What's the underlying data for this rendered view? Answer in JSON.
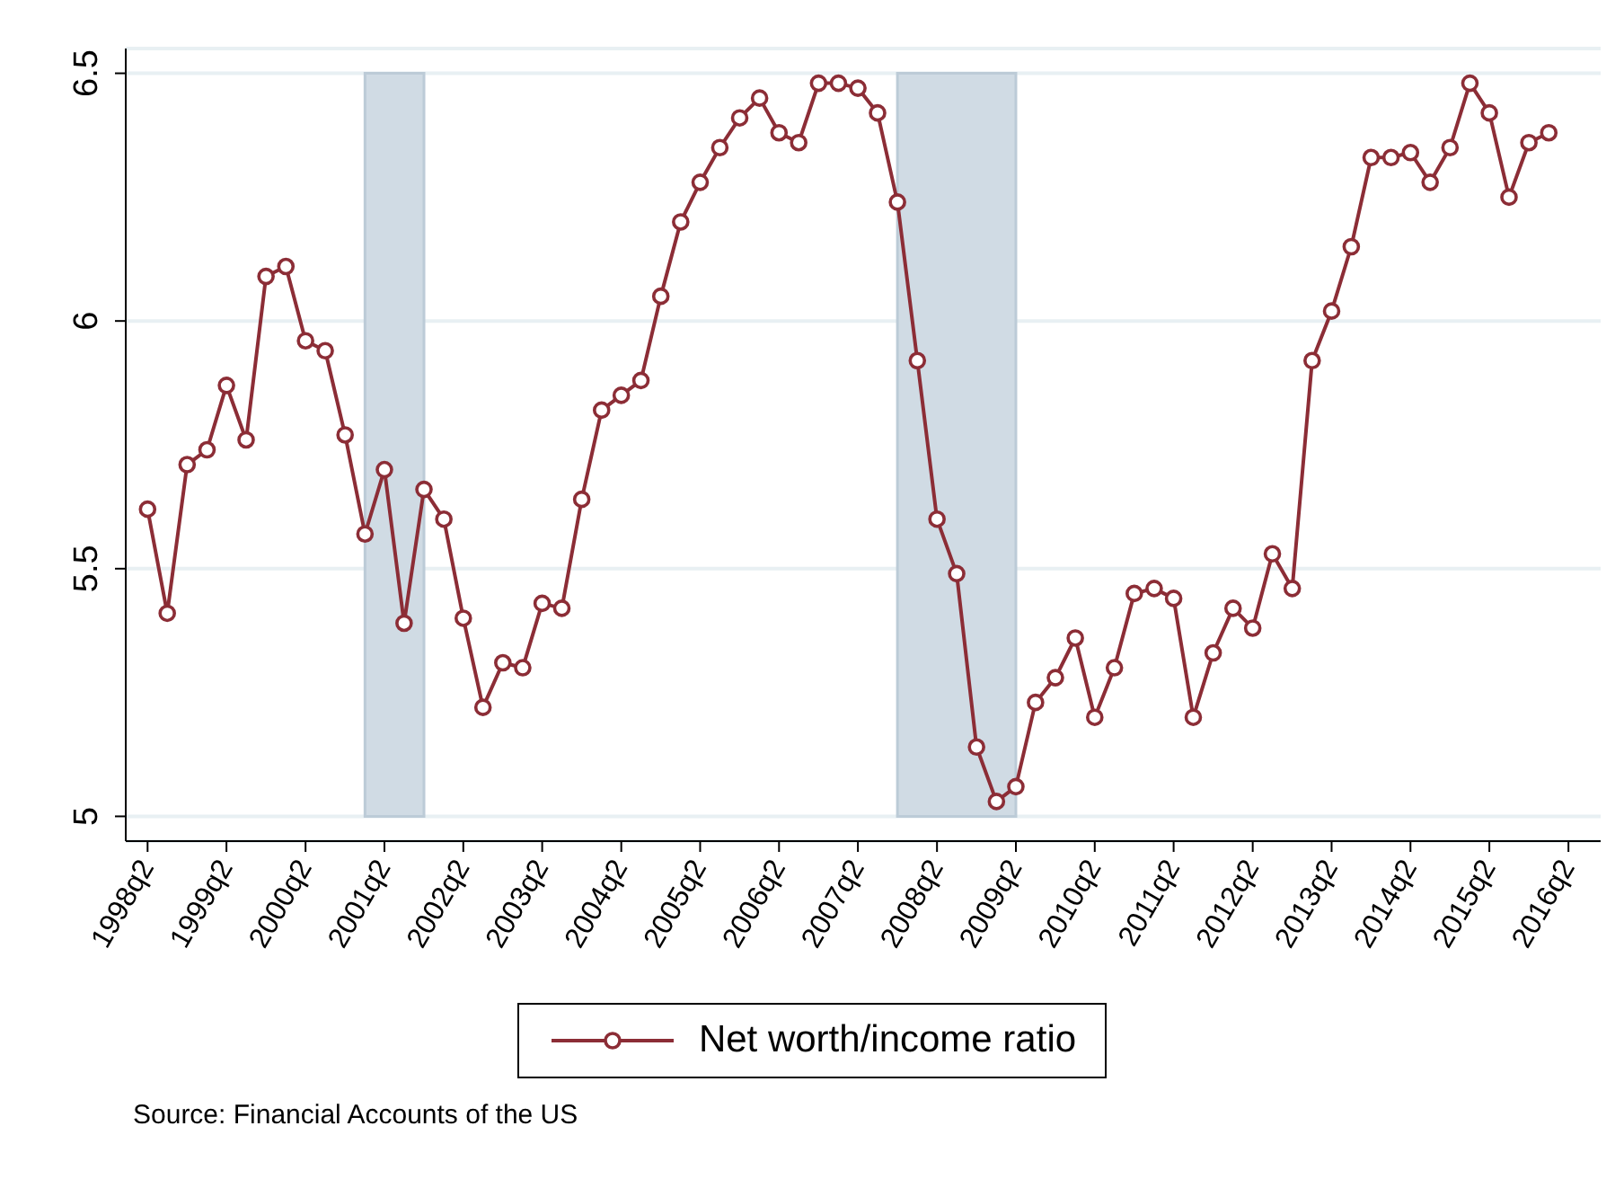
{
  "chart_data": {
    "type": "line",
    "x": [
      "1998-04",
      "1998-07",
      "1998-10",
      "1999-01",
      "1999-04",
      "1999-07",
      "1999-10",
      "2000-01",
      "2000-04",
      "2000-07",
      "2000-10",
      "2001-01",
      "2001-04",
      "2001-07",
      "2001-10",
      "2002-01",
      "2002-04",
      "2002-07",
      "2002-10",
      "2003-01",
      "2003-04",
      "2003-07",
      "2003-10",
      "2004-01",
      "2004-04",
      "2004-07",
      "2004-10",
      "2005-01",
      "2005-04",
      "2005-07",
      "2005-10",
      "2006-01",
      "2006-04",
      "2006-07",
      "2006-10",
      "2007-01",
      "2007-04",
      "2007-07",
      "2007-10",
      "2008-01",
      "2008-04",
      "2008-07",
      "2008-10",
      "2009-01",
      "2009-04",
      "2009-07",
      "2009-10",
      "2010-01",
      "2010-04",
      "2010-07",
      "2010-10",
      "2011-01",
      "2011-04",
      "2011-07",
      "2011-10",
      "2012-01",
      "2012-04",
      "2012-07",
      "2012-10",
      "2013-01",
      "2013-04",
      "2013-07",
      "2013-10",
      "2014-01",
      "2014-04",
      "2014-07",
      "2014-10",
      "2015-01",
      "2015-04",
      "2015-07",
      "2015-10",
      "2016-01"
    ],
    "series": [
      {
        "name": "Net worth/income ratio",
        "color": "#8c2d36",
        "values": [
          5.62,
          5.41,
          5.71,
          5.74,
          5.87,
          5.76,
          6.09,
          6.11,
          5.96,
          5.94,
          5.77,
          5.57,
          5.7,
          5.39,
          5.66,
          5.6,
          5.4,
          5.22,
          5.31,
          5.3,
          5.43,
          5.42,
          5.64,
          5.82,
          5.85,
          5.88,
          6.05,
          6.2,
          6.28,
          6.35,
          6.41,
          6.45,
          6.38,
          6.36,
          6.48,
          6.48,
          6.47,
          6.42,
          6.24,
          5.92,
          5.6,
          5.49,
          5.14,
          5.03,
          5.06,
          5.23,
          5.28,
          5.36,
          5.2,
          5.3,
          5.45,
          5.46,
          5.44,
          5.2,
          5.33,
          5.42,
          5.38,
          5.53,
          5.46,
          5.92,
          6.02,
          6.15,
          6.33,
          6.33,
          6.34,
          6.28,
          6.35,
          6.48,
          6.42,
          6.25,
          6.36,
          6.38
        ]
      }
    ],
    "xlim": [
      "1997-12-21",
      "2016-08-28"
    ],
    "xticks": [
      {
        "value": "1998-04",
        "label": "1998q2"
      },
      {
        "value": "1999-04",
        "label": "1999q2"
      },
      {
        "value": "2000-04",
        "label": "2000q2"
      },
      {
        "value": "2001-04",
        "label": "2001q2"
      },
      {
        "value": "2002-04",
        "label": "2002q2"
      },
      {
        "value": "2003-04",
        "label": "2003q2"
      },
      {
        "value": "2004-04",
        "label": "2004q2"
      },
      {
        "value": "2005-04",
        "label": "2005q2"
      },
      {
        "value": "2006-04",
        "label": "2006q2"
      },
      {
        "value": "2007-04",
        "label": "2007q2"
      },
      {
        "value": "2008-04",
        "label": "2008q2"
      },
      {
        "value": "2009-04",
        "label": "2009q2"
      },
      {
        "value": "2010-04",
        "label": "2010q2"
      },
      {
        "value": "2011-04",
        "label": "2011q2"
      },
      {
        "value": "2012-04",
        "label": "2012q2"
      },
      {
        "value": "2013-04",
        "label": "2013q2"
      },
      {
        "value": "2014-04",
        "label": "2014q2"
      },
      {
        "value": "2015-04",
        "label": "2015q2"
      },
      {
        "value": "2016-04",
        "label": "2016q2"
      }
    ],
    "ylim": [
      4.95,
      6.55
    ],
    "yticks": [
      5,
      5.5,
      6,
      6.5
    ],
    "bands": [
      {
        "axis": "x",
        "from": "2001-01",
        "to": "2001-10",
        "color": "#d0dbe4"
      },
      {
        "axis": "x",
        "from": "2007-10",
        "to": "2009-04",
        "color": "#d0dbe4"
      }
    ],
    "grid": "y",
    "legend": "bottom",
    "marker": "circle",
    "line_style": "solid",
    "annotations": [
      "Source: Financial Accounts of the US"
    ]
  }
}
